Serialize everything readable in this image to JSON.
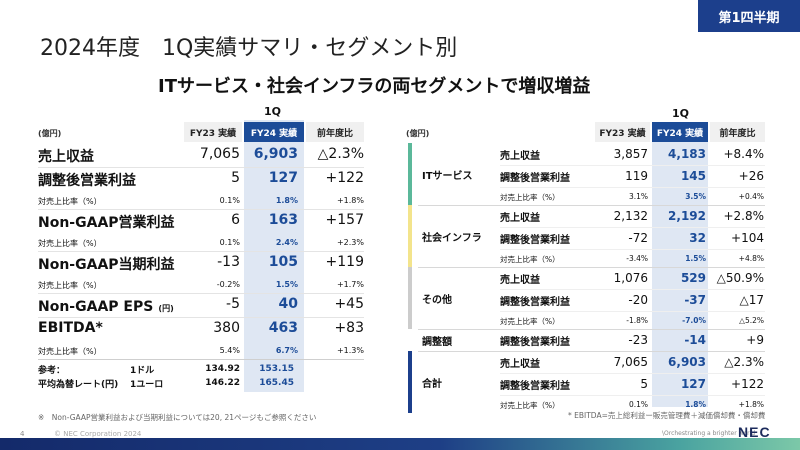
{
  "header": {
    "title": "2024年度　1Q実績サマリ・セグメント別",
    "badge": "第1四半期",
    "subtitle": "ITサービス・社会インフラの両セグメントで増収増益"
  },
  "left_table": {
    "period": "1Q",
    "unit": "(億円)",
    "columns": [
      "FY23 実績",
      "FY24 実績",
      "前年度比"
    ],
    "rows": [
      {
        "label": "売上収益",
        "fy23": "7,065",
        "fy24": "6,903",
        "yoy": "△2.3%",
        "style": "big"
      },
      {
        "label": "調整後営業利益",
        "fy23": "5",
        "fy24": "127",
        "yoy": "+122",
        "style": "big"
      },
      {
        "label": "対売上比率（%）",
        "fy23": "0.1%",
        "fy24": "1.8%",
        "yoy": "+1.8%",
        "style": "small"
      },
      {
        "label": "Non-GAAP営業利益",
        "fy23": "6",
        "fy24": "163",
        "yoy": "+157",
        "style": "big"
      },
      {
        "label": "対売上比率（%）",
        "fy23": "0.1%",
        "fy24": "2.4%",
        "yoy": "+2.3%",
        "style": "small"
      },
      {
        "label": "Non-GAAP当期利益",
        "fy23": "-13",
        "fy24": "105",
        "yoy": "+119",
        "style": "big"
      },
      {
        "label": "対売上比率（%）",
        "fy23": "-0.2%",
        "fy24": "1.5%",
        "yoy": "+1.7%",
        "style": "small"
      },
      {
        "label": "Non-GAAP EPS",
        "label_suffix": "(円)",
        "fy23": "-5",
        "fy24": "40",
        "yoy": "+45",
        "style": "big"
      },
      {
        "label": "EBITDA*",
        "fy23": "380",
        "fy24": "463",
        "yoy": "+83",
        "style": "big"
      },
      {
        "label": "対売上比率（%）",
        "fy23": "5.4%",
        "fy24": "6.7%",
        "yoy": "+1.3%",
        "style": "small"
      }
    ],
    "fx": {
      "label1": "参考：",
      "label2": "平均為替レート(円)",
      "rows": [
        {
          "currency": "1ドル",
          "fy23": "134.92",
          "fy24": "153.15"
        },
        {
          "currency": "1ユーロ",
          "fy23": "146.22",
          "fy24": "165.45"
        }
      ]
    },
    "note": "※　Non-GAAP営業利益および当期利益については20, 21ページもご参照ください"
  },
  "right_table": {
    "period": "1Q",
    "unit": "(億円)",
    "columns": [
      "FY23 実績",
      "FY24 実績",
      "前年度比"
    ],
    "segments": [
      {
        "name": "ITサービス",
        "color": "#5bb89a",
        "rows": [
          {
            "label": "売上収益",
            "fy23": "3,857",
            "fy24": "4,183",
            "yoy": "+8.4%",
            "style": "big"
          },
          {
            "label": "調整後営業利益",
            "fy23": "119",
            "fy24": "145",
            "yoy": "+26",
            "style": "big"
          },
          {
            "label": "対売上比率（%）",
            "fy23": "3.1%",
            "fy24": "3.5%",
            "yoy": "+0.4%",
            "style": "small"
          }
        ]
      },
      {
        "name": "社会インフラ",
        "color": "#f3e48c",
        "rows": [
          {
            "label": "売上収益",
            "fy23": "2,132",
            "fy24": "2,192",
            "yoy": "+2.8%",
            "style": "big"
          },
          {
            "label": "調整後営業利益",
            "fy23": "-72",
            "fy24": "32",
            "yoy": "+104",
            "style": "big"
          },
          {
            "label": "対売上比率（%）",
            "fy23": "-3.4%",
            "fy24": "1.5%",
            "yoy": "+4.8%",
            "style": "small"
          }
        ]
      },
      {
        "name": "その他",
        "color": "#cccccc",
        "rows": [
          {
            "label": "売上収益",
            "fy23": "1,076",
            "fy24": "529",
            "yoy": "△50.9%",
            "style": "big"
          },
          {
            "label": "調整後営業利益",
            "fy23": "-20",
            "fy24": "-37",
            "yoy": "△17",
            "style": "big"
          },
          {
            "label": "対売上比率（%）",
            "fy23": "-1.8%",
            "fy24": "-7.0%",
            "yoy": "△5.2%",
            "style": "small"
          }
        ]
      },
      {
        "name": "調整額",
        "color": "#ffffff",
        "rows": [
          {
            "label": "調整後営業利益",
            "fy23": "-23",
            "fy24": "-14",
            "yoy": "+9",
            "style": "big"
          }
        ]
      },
      {
        "name": "合計",
        "color": "#1c3f8c",
        "rows": [
          {
            "label": "売上収益",
            "fy23": "7,065",
            "fy24": "6,903",
            "yoy": "△2.3%",
            "style": "big"
          },
          {
            "label": "調整後営業利益",
            "fy23": "5",
            "fy24": "127",
            "yoy": "+122",
            "style": "big"
          },
          {
            "label": "対売上比率（%）",
            "fy23": "0.1%",
            "fy24": "1.8%",
            "yoy": "+1.8%",
            "style": "small"
          }
        ]
      }
    ],
    "note": "* EBITDA=売上総利益ー販売管理費＋減価償却費・償却費"
  },
  "footer": {
    "page": "4",
    "copyright": "© NEC Corporation 2024",
    "tagline": "\\Orchestrating a brighter world",
    "logo": "NEC"
  }
}
